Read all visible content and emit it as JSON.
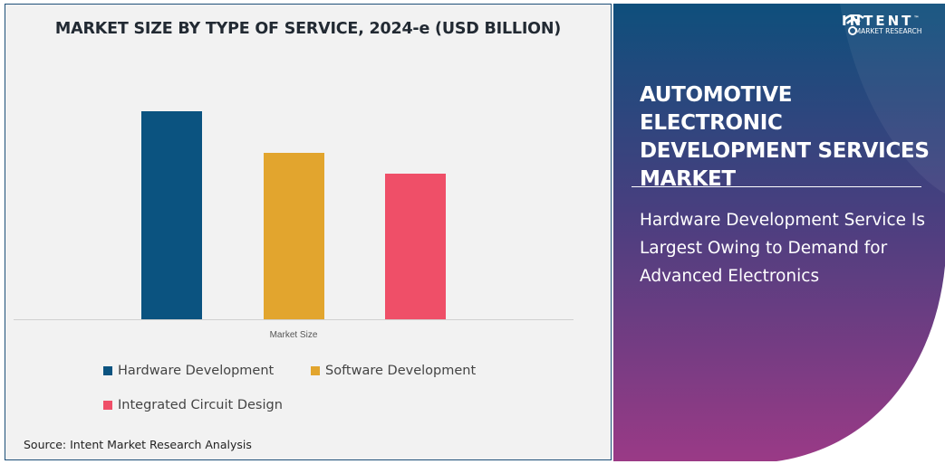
{
  "chart_data": {
    "type": "bar",
    "title": "MARKET SIZE BY TYPE OF SERVICE, 2024-e (USD BILLION)",
    "categories": [
      "Market Size"
    ],
    "series": [
      {
        "name": "Hardware Development",
        "values": [
          1.0
        ],
        "color": "#0b5380"
      },
      {
        "name": "Software Development",
        "values": [
          0.8
        ],
        "color": "#e2a52e"
      },
      {
        "name": "Integrated Circuit Design",
        "values": [
          0.7
        ],
        "color": "#ef4f68"
      }
    ],
    "ylim": [
      0,
      1.0
    ],
    "grid": false,
    "legend_position": "bottom",
    "xlabel": "",
    "ylabel": ""
  },
  "source": "Source: Intent Market Research Analysis",
  "side": {
    "title": "AUTOMOTIVE ELECTRONIC DEVELOPMENT SERVICES MARKET",
    "subtitle": "Hardware Development Service Is Largest Owing to Demand for Advanced Electronics",
    "logo": {
      "brand": "INTENT",
      "tm": "™",
      "sub": "MARKET RESEARCH"
    },
    "gradient": {
      "top": "#0e4f7c",
      "bottom": "#9a3a86"
    }
  }
}
